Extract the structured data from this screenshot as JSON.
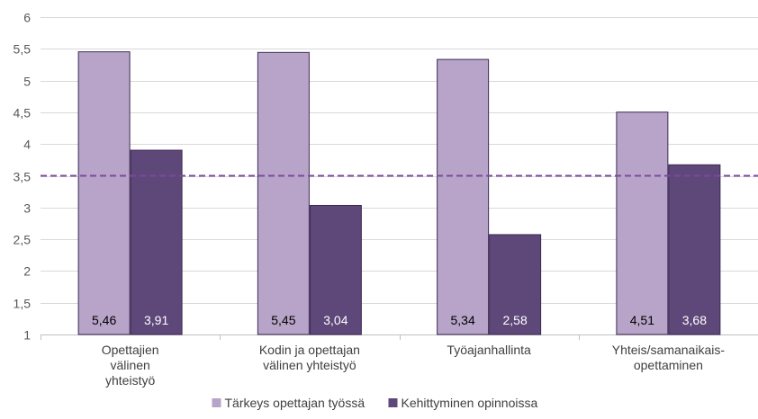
{
  "chart_data": {
    "type": "bar",
    "title": "",
    "xlabel": "",
    "ylabel": "",
    "categories": [
      [
        "Opettajien",
        "välinen",
        "yhteistyö"
      ],
      [
        "Kodin ja opettajan",
        "välinen yhteistyö"
      ],
      [
        "Työajanhallinta"
      ],
      [
        "Yhteis/samanaikais-",
        "opettaminen"
      ]
    ],
    "series": [
      {
        "name": "Tärkeys opettajan työssä",
        "values": [
          5.46,
          5.45,
          5.34,
          4.51
        ],
        "labels": [
          "5,46",
          "5,45",
          "5,34",
          "4,51"
        ],
        "color": "#b7a4c8",
        "label_color": "#000000"
      },
      {
        "name": "Kehittyminen opinnoissa",
        "values": [
          3.91,
          3.04,
          2.58,
          3.68
        ],
        "labels": [
          "3,91",
          "3,04",
          "2,58",
          "3,68"
        ],
        "color": "#5e4779",
        "label_color": "#ffffff"
      }
    ],
    "ylim": [
      1,
      6
    ],
    "yticks": [
      1,
      1.5,
      2,
      2.5,
      3,
      3.5,
      4,
      4.5,
      5,
      5.5,
      6
    ],
    "ytick_labels": [
      "1",
      "1,5",
      "2",
      "2,5",
      "3",
      "3,5",
      "4",
      "4,5",
      "5",
      "5,5",
      "6"
    ],
    "reference_line": {
      "value": 3.5,
      "style": "dashed",
      "color": "#7b4a9e"
    },
    "grid": true,
    "legend": "bottom",
    "colors": {
      "gridline": "#d9d9d9",
      "axis": "#bfbfbf"
    }
  }
}
